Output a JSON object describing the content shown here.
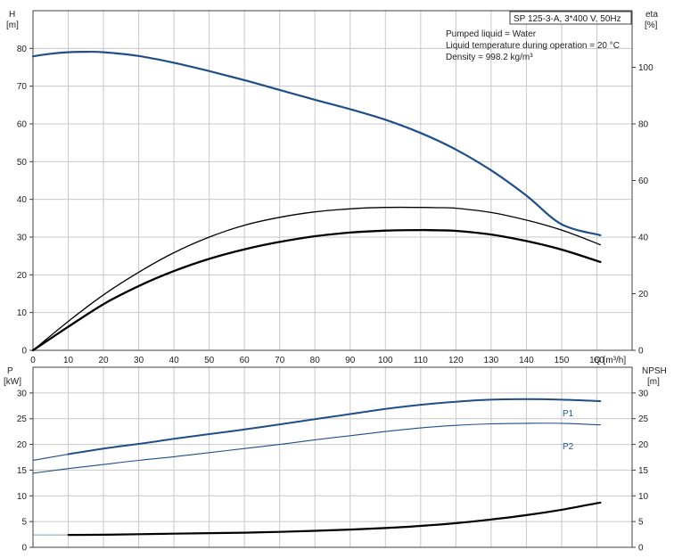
{
  "header": {
    "model": "SP 125-3-A, 3*400 V, 50Hz",
    "info_lines": [
      "Pumped liquid = Water",
      "Liquid temperature during operation = 20 °C",
      "Density = 998.2 kg/m³"
    ]
  },
  "colors": {
    "blue": "#1f4f86",
    "black": "#000000",
    "grid": "#c8c8c8"
  },
  "chart_data": [
    {
      "type": "line",
      "title": "",
      "xlabel": "Q [m³/h]",
      "ylabel_left": [
        "H",
        "[m]"
      ],
      "ylabel_right": [
        "eta",
        "[%]"
      ],
      "xlim": [
        0,
        170
      ],
      "ylim": [
        0,
        90
      ],
      "ylim_right": [
        0,
        120
      ],
      "xticks": [
        0,
        10,
        20,
        30,
        40,
        50,
        60,
        70,
        80,
        90,
        100,
        110,
        120,
        130,
        140,
        150,
        160
      ],
      "yticks": [
        0,
        10,
        20,
        30,
        40,
        50,
        60,
        70,
        80
      ],
      "yticks_right": [
        0,
        20,
        40,
        60,
        80,
        100
      ],
      "grid": true,
      "series": [
        {
          "axis": "left",
          "color": "#1f4f86",
          "width": 2.2,
          "x": [
            0,
            5,
            10,
            15,
            20,
            30,
            40,
            50,
            60,
            70,
            80,
            90,
            100,
            110,
            120,
            130,
            140,
            150,
            161
          ],
          "values": [
            77.9,
            78.6,
            79.0,
            79.1,
            79.0,
            78.0,
            76.2,
            74.0,
            71.6,
            69.0,
            66.4,
            63.9,
            61.1,
            57.6,
            53.2,
            47.7,
            41.0,
            33.4,
            30.5
          ]
        },
        {
          "axis": "right",
          "color": "#000000",
          "width": 1.3,
          "x": [
            0,
            10,
            20,
            30,
            40,
            50,
            60,
            70,
            80,
            90,
            100,
            110,
            115,
            120,
            130,
            140,
            150,
            161
          ],
          "values": [
            0,
            10.2,
            19.6,
            27.6,
            34.5,
            40.0,
            44.2,
            47.0,
            48.9,
            50.0,
            50.5,
            50.5,
            50.4,
            50.2,
            48.7,
            46.0,
            42.5,
            37.3
          ]
        },
        {
          "axis": "right",
          "color": "#000000",
          "width": 2.3,
          "x": [
            0,
            10,
            20,
            30,
            40,
            50,
            60,
            70,
            80,
            90,
            100,
            110,
            115,
            120,
            130,
            140,
            150,
            161
          ],
          "values": [
            0,
            8.3,
            16.3,
            22.7,
            28.0,
            32.3,
            35.7,
            38.3,
            40.3,
            41.6,
            42.3,
            42.5,
            42.4,
            42.2,
            40.9,
            38.6,
            35.6,
            31.2
          ]
        }
      ]
    },
    {
      "type": "line",
      "title": "",
      "ylabel_left": [
        "P",
        "[kW]"
      ],
      "ylabel_right": [
        "NPSH",
        "[m]"
      ],
      "xlim": [
        0,
        170
      ],
      "ylim": [
        0,
        35
      ],
      "yticks": [
        0,
        5,
        10,
        15,
        20,
        25,
        30
      ],
      "yticks_right": [
        0,
        5,
        10,
        15,
        20,
        25,
        30
      ],
      "grid": true,
      "series": [
        {
          "name": "P1",
          "axis": "left",
          "color": "#1f4f86",
          "width": 2.0,
          "x": [
            10,
            20,
            30,
            40,
            50,
            60,
            70,
            80,
            90,
            100,
            110,
            120,
            130,
            140,
            150,
            161
          ],
          "values": [
            18.1,
            19.2,
            20.1,
            21.1,
            22.0,
            22.9,
            23.9,
            24.9,
            25.9,
            26.9,
            27.7,
            28.3,
            28.7,
            28.8,
            28.7,
            28.4
          ]
        },
        {
          "name": "P2",
          "axis": "left",
          "color": "#1f4f86",
          "width": 1.1,
          "x": [
            10,
            20,
            30,
            40,
            50,
            60,
            70,
            80,
            90,
            100,
            110,
            120,
            130,
            140,
            150,
            161
          ],
          "values": [
            15.3,
            16.1,
            16.9,
            17.6,
            18.4,
            19.2,
            20.0,
            20.9,
            21.7,
            22.5,
            23.2,
            23.7,
            24.0,
            24.1,
            24.1,
            23.8
          ]
        },
        {
          "axis": "right",
          "color": "#000000",
          "width": 2.2,
          "x": [
            10,
            20,
            30,
            40,
            50,
            60,
            70,
            80,
            90,
            100,
            110,
            120,
            130,
            140,
            150,
            161
          ],
          "values": [
            2.4,
            2.45,
            2.55,
            2.65,
            2.75,
            2.85,
            3.0,
            3.2,
            3.45,
            3.75,
            4.15,
            4.7,
            5.4,
            6.25,
            7.3,
            8.7
          ]
        }
      ]
    }
  ]
}
